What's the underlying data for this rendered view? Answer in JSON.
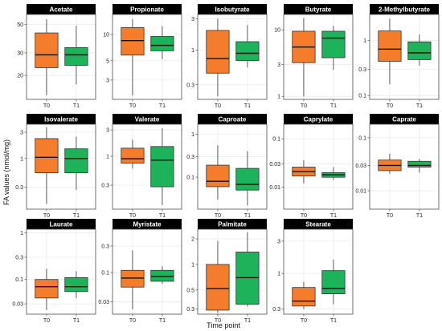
{
  "figure": {
    "xlabel": "Time point",
    "ylabel": "FA values (nmol/mg)"
  },
  "colors": {
    "T0": "#f57c2b",
    "T1": "#1db35a",
    "strip": "#000000",
    "grid": "#ebebeb",
    "panel_border": "#4d4d4d"
  },
  "chart_data": [
    {
      "type": "boxplot",
      "title": "Acetate",
      "categories": [
        "T0",
        "T1"
      ],
      "scale": "log",
      "ylim": [
        13,
        60
      ],
      "yticks": [
        20,
        30,
        50
      ],
      "series": [
        {
          "name": "T0",
          "min": 14,
          "q1": 23,
          "median": 29,
          "q3": 43,
          "max": 55
        },
        {
          "name": "T1",
          "min": 17,
          "q1": 24,
          "median": 29,
          "q3": 33,
          "max": 49
        }
      ]
    },
    {
      "type": "boxplot",
      "title": "Propionate",
      "categories": [
        "T0",
        "T1"
      ],
      "scale": "log",
      "ylim": [
        1.8,
        17
      ],
      "yticks": [
        3,
        5,
        10
      ],
      "series": [
        {
          "name": "T0",
          "min": 2.0,
          "q1": 5.8,
          "median": 8.5,
          "q3": 12.0,
          "max": 15.0
        },
        {
          "name": "T1",
          "min": 5.2,
          "q1": 6.5,
          "median": 7.5,
          "q3": 9.5,
          "max": 12.5
        }
      ]
    },
    {
      "type": "boxplot",
      "title": "Isobutyrate",
      "categories": [
        "T0",
        "T1"
      ],
      "scale": "log",
      "ylim": [
        0.18,
        3.5
      ],
      "yticks": [
        0.3,
        1.0,
        3.0
      ],
      "series": [
        {
          "name": "T0",
          "min": 0.2,
          "q1": 0.45,
          "median": 0.75,
          "q3": 2.0,
          "max": 3.0
        },
        {
          "name": "T1",
          "min": 0.55,
          "q1": 0.7,
          "median": 0.9,
          "q3": 1.35,
          "max": 2.4
        }
      ]
    },
    {
      "type": "boxplot",
      "title": "Butyrate",
      "categories": [
        "T0",
        "T1"
      ],
      "scale": "log",
      "ylim": [
        0.9,
        17
      ],
      "yticks": [
        1,
        3,
        10
      ],
      "series": [
        {
          "name": "T0",
          "min": 1.0,
          "q1": 3.2,
          "median": 5.5,
          "q3": 9.5,
          "max": 15.0
        },
        {
          "name": "T1",
          "min": 2.5,
          "q1": 3.8,
          "median": 7.5,
          "q3": 9.5,
          "max": 11.5
        }
      ]
    },
    {
      "type": "boxplot",
      "title": "2-Methylbutyrate",
      "categories": [
        "T0",
        "T1"
      ],
      "scale": "log",
      "ylim": [
        0.085,
        3.0
      ],
      "yticks": [
        0.1,
        0.3,
        1.0
      ],
      "series": [
        {
          "name": "T0",
          "min": 0.16,
          "q1": 0.42,
          "median": 0.7,
          "q3": 1.5,
          "max": 2.5
        },
        {
          "name": "T1",
          "min": 0.35,
          "q1": 0.45,
          "median": 0.6,
          "q3": 0.95,
          "max": 1.3
        }
      ]
    },
    {
      "type": "boxplot",
      "title": "Isovalerate",
      "categories": [
        "T0",
        "T1"
      ],
      "scale": "log",
      "ylim": [
        0.12,
        4.2
      ],
      "yticks": [
        0.3,
        1.0,
        3.0
      ],
      "series": [
        {
          "name": "T0",
          "min": 0.15,
          "q1": 0.55,
          "median": 1.05,
          "q3": 2.3,
          "max": 3.7
        },
        {
          "name": "T1",
          "min": 0.27,
          "q1": 0.55,
          "median": 1.0,
          "q3": 1.5,
          "max": 2.5
        }
      ]
    },
    {
      "type": "boxplot",
      "title": "Valerate",
      "categories": [
        "T0",
        "T1"
      ],
      "scale": "log",
      "ylim": [
        0.11,
        3.8
      ],
      "yticks": [
        0.3,
        1.0,
        3.0
      ],
      "series": [
        {
          "name": "T0",
          "min": 0.6,
          "q1": 0.75,
          "median": 0.9,
          "q3": 1.4,
          "max": 2.0
        },
        {
          "name": "T1",
          "min": 0.13,
          "q1": 0.28,
          "median": 0.85,
          "q3": 1.5,
          "max": 3.2
        }
      ]
    },
    {
      "type": "boxplot",
      "title": "Caproate",
      "categories": [
        "T0",
        "T1"
      ],
      "scale": "log",
      "ylim": [
        0.018,
        1.7
      ],
      "yticks": [
        0.1,
        0.3,
        1.0
      ],
      "series": [
        {
          "name": "T0",
          "min": 0.03,
          "q1": 0.06,
          "median": 0.08,
          "q3": 0.19,
          "max": 0.55
        },
        {
          "name": "T1",
          "min": 0.022,
          "q1": 0.05,
          "median": 0.068,
          "q3": 0.16,
          "max": 0.4
        }
      ]
    },
    {
      "type": "boxplot",
      "title": "Caprylate",
      "categories": [
        "T0",
        "T1"
      ],
      "scale": "log",
      "ylim": [
        0.0035,
        0.2
      ],
      "yticks": [
        0.01,
        0.03,
        0.1
      ],
      "series": [
        {
          "name": "T0",
          "min": 0.012,
          "q1": 0.017,
          "median": 0.021,
          "q3": 0.026,
          "max": 0.036
        },
        {
          "name": "T1",
          "min": 0.014,
          "q1": 0.016,
          "median": 0.018,
          "q3": 0.02,
          "max": 0.026
        }
      ]
    },
    {
      "type": "boxplot",
      "title": "Caprate",
      "categories": [
        "T0",
        "T1"
      ],
      "scale": "log",
      "ylim": [
        0.0045,
        0.18
      ],
      "yticks": [
        0.01,
        0.03,
        0.1
      ],
      "series": [
        {
          "name": "T0",
          "min": 0.021,
          "q1": 0.024,
          "median": 0.03,
          "q3": 0.038,
          "max": 0.05
        },
        {
          "name": "T1",
          "min": 0.022,
          "q1": 0.028,
          "median": 0.03,
          "q3": 0.036,
          "max": 0.04
        }
      ]
    },
    {
      "type": "boxplot",
      "title": "Laurate",
      "categories": [
        "T0",
        "T1"
      ],
      "scale": "log",
      "ylim": [
        0.018,
        1.2
      ],
      "yticks": [
        0.03,
        0.1,
        0.3,
        1.0
      ],
      "series": [
        {
          "name": "T0",
          "min": 0.022,
          "q1": 0.04,
          "median": 0.07,
          "q3": 0.1,
          "max": 0.17
        },
        {
          "name": "T1",
          "min": 0.04,
          "q1": 0.055,
          "median": 0.07,
          "q3": 0.11,
          "max": 0.15
        }
      ]
    },
    {
      "type": "boxplot",
      "title": "Myristate",
      "categories": [
        "T0",
        "T1"
      ],
      "scale": "log",
      "ylim": [
        0.018,
        0.6
      ],
      "yticks": [
        0.03,
        0.1,
        0.3
      ],
      "series": [
        {
          "name": "T0",
          "min": 0.022,
          "q1": 0.055,
          "median": 0.08,
          "q3": 0.11,
          "max": 0.25
        },
        {
          "name": "T1",
          "min": 0.063,
          "q1": 0.07,
          "median": 0.085,
          "q3": 0.11,
          "max": 0.13
        }
      ]
    },
    {
      "type": "boxplot",
      "title": "Palmitate",
      "categories": [
        "T0",
        "T1"
      ],
      "scale": "log",
      "ylim": [
        0.26,
        2.6
      ],
      "yticks": [
        0.3,
        0.5,
        1.0,
        2.0
      ],
      "series": [
        {
          "name": "T0",
          "min": 0.27,
          "q1": 0.29,
          "median": 0.52,
          "q3": 1.0,
          "max": 1.9
        },
        {
          "name": "T1",
          "min": 0.32,
          "q1": 0.34,
          "median": 0.7,
          "q3": 1.4,
          "max": 2.4
        }
      ]
    },
    {
      "type": "boxplot",
      "title": "Stearate",
      "categories": [
        "T0",
        "T1"
      ],
      "scale": "log",
      "ylim": [
        0.25,
        4.5
      ],
      "yticks": [
        0.3,
        1.0,
        3.0
      ],
      "series": [
        {
          "name": "T0",
          "min": 0.3,
          "q1": 0.33,
          "median": 0.39,
          "q3": 0.62,
          "max": 0.75
        },
        {
          "name": "T1",
          "min": 0.35,
          "q1": 0.5,
          "median": 0.6,
          "q3": 1.1,
          "max": 1.6
        }
      ]
    }
  ]
}
